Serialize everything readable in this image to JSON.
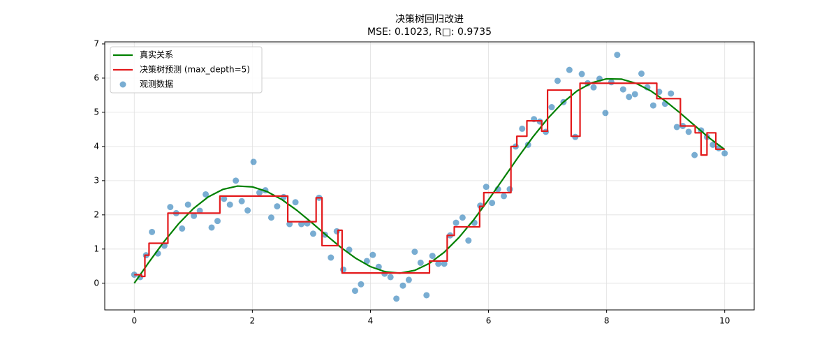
{
  "chart_data": {
    "type": "line",
    "title": "决策树回归改进",
    "subtitle": "MSE: 0.1023, R□: 0.9735",
    "xlim": [
      -0.5,
      10.5
    ],
    "ylim": [
      -0.78,
      7.06
    ],
    "xticks": [
      0,
      2,
      4,
      6,
      8,
      10
    ],
    "yticks": [
      0,
      1,
      2,
      3,
      4,
      5,
      6,
      7
    ],
    "grid": true,
    "legend": "upper left",
    "series": [
      {
        "name": "观测数据",
        "type": "scatter",
        "color": "#1f77b4",
        "x": [
          0,
          0.1,
          0.2,
          0.3,
          0.4,
          0.51,
          0.61,
          0.71,
          0.81,
          0.91,
          1.01,
          1.11,
          1.21,
          1.31,
          1.41,
          1.52,
          1.62,
          1.72,
          1.82,
          1.92,
          2.02,
          2.12,
          2.22,
          2.32,
          2.42,
          2.53,
          2.63,
          2.73,
          2.83,
          2.93,
          3.03,
          3.13,
          3.23,
          3.33,
          3.43,
          3.54,
          3.64,
          3.74,
          3.84,
          3.94,
          4.04,
          4.14,
          4.24,
          4.34,
          4.44,
          4.55,
          4.65,
          4.75,
          4.85,
          4.95,
          5.05,
          5.15,
          5.25,
          5.35,
          5.45,
          5.56,
          5.66,
          5.76,
          5.86,
          5.96,
          6.06,
          6.16,
          6.26,
          6.36,
          6.46,
          6.57,
          6.67,
          6.77,
          6.87,
          6.97,
          7.07,
          7.17,
          7.27,
          7.37,
          7.47,
          7.58,
          7.68,
          7.78,
          7.88,
          7.98,
          8.08,
          8.18,
          8.28,
          8.38,
          8.48,
          8.59,
          8.69,
          8.79,
          8.89,
          8.99,
          9.09,
          9.19,
          9.29,
          9.39,
          9.49,
          9.6,
          9.7,
          9.8,
          9.9,
          10
        ],
        "values": [
          0.25,
          0.18,
          0.82,
          1.5,
          0.87,
          1.1,
          2.23,
          2.05,
          1.6,
          2.3,
          1.97,
          2.12,
          2.6,
          1.63,
          1.82,
          2.47,
          2.3,
          3.0,
          2.4,
          2.13,
          3.55,
          2.65,
          2.72,
          1.92,
          2.25,
          2.52,
          1.73,
          2.37,
          1.73,
          1.75,
          1.45,
          2.5,
          1.42,
          0.75,
          1.52,
          0.4,
          0.98,
          -0.22,
          -0.03,
          0.65,
          0.83,
          0.48,
          0.28,
          0.18,
          -0.45,
          -0.07,
          0.1,
          0.92,
          0.6,
          -0.35,
          0.8,
          0.57,
          0.57,
          1.4,
          1.77,
          1.92,
          1.25,
          1.77,
          2.27,
          2.82,
          2.35,
          2.75,
          2.55,
          2.75,
          4.0,
          4.52,
          4.05,
          4.8,
          4.73,
          4.43,
          5.15,
          5.92,
          5.3,
          6.24,
          4.28,
          6.12,
          5.85,
          5.73,
          5.98,
          4.98,
          5.88,
          6.68,
          5.67,
          5.45,
          5.53,
          6.13,
          5.73,
          5.2,
          5.6,
          5.25,
          5.55,
          4.57,
          4.6,
          4.43,
          3.75,
          4.47,
          4.28,
          4.05,
          3.95,
          3.8
        ]
      },
      {
        "name": "真实关系",
        "type": "line",
        "color": "#008000",
        "x": [
          0,
          0.25,
          0.5,
          0.75,
          1,
          1.25,
          1.5,
          1.75,
          2,
          2.25,
          2.5,
          2.75,
          3,
          3.25,
          3.5,
          3.75,
          4,
          4.25,
          4.5,
          4.75,
          5,
          5.25,
          5.5,
          5.75,
          6,
          6.25,
          6.5,
          6.75,
          7,
          7.25,
          7.5,
          7.75,
          8,
          8.25,
          8.5,
          8.75,
          9,
          9.25,
          9.5,
          9.75,
          10
        ],
        "values": [
          0,
          0.62,
          1.209,
          1.738,
          2.183,
          2.523,
          2.745,
          2.843,
          2.819,
          2.681,
          2.447,
          2.138,
          1.782,
          1.409,
          1.048,
          0.732,
          0.486,
          0.335,
          0.295,
          0.376,
          0.582,
          0.907,
          1.339,
          1.858,
          2.441,
          3.059,
          3.68,
          4.275,
          4.814,
          5.271,
          5.626,
          5.864,
          5.979,
          5.971,
          5.847,
          5.624,
          5.324,
          4.974,
          4.6,
          4.236,
          3.912
        ]
      },
      {
        "name": "决策树预测 (max_depth=5)",
        "type": "line",
        "color": "#e31a1c",
        "x": [
          0,
          0.12,
          0.12,
          0.18,
          0.18,
          0.25,
          0.25,
          0.57,
          0.57,
          1.45,
          1.45,
          2.6,
          2.6,
          3.08,
          3.08,
          3.18,
          3.18,
          3.45,
          3.45,
          3.52,
          3.52,
          5.0,
          5.0,
          5.3,
          5.3,
          5.42,
          5.42,
          5.85,
          5.85,
          5.92,
          5.92,
          6.38,
          6.38,
          6.48,
          6.48,
          6.65,
          6.65,
          6.9,
          6.9,
          7.0,
          7.0,
          7.4,
          7.4,
          7.55,
          7.55,
          8.85,
          8.85,
          9.25,
          9.25,
          9.5,
          9.5,
          9.6,
          9.6,
          9.7,
          9.7,
          9.85,
          9.85,
          10
        ],
        "values": [
          0.25,
          0.25,
          0.2,
          0.2,
          0.82,
          0.82,
          1.17,
          1.17,
          2.05,
          2.05,
          2.55,
          2.55,
          1.8,
          1.8,
          2.5,
          2.5,
          1.1,
          1.1,
          1.55,
          1.55,
          0.3,
          0.3,
          0.65,
          0.65,
          1.4,
          1.4,
          1.65,
          1.65,
          2.25,
          2.25,
          2.65,
          2.65,
          4.0,
          4.0,
          4.3,
          4.3,
          4.75,
          4.75,
          4.45,
          4.45,
          5.65,
          5.65,
          4.3,
          4.3,
          5.85,
          5.85,
          5.4,
          5.4,
          4.6,
          4.6,
          4.4,
          4.4,
          3.75,
          3.75,
          4.4,
          4.4,
          3.92,
          3.92
        ]
      }
    ]
  }
}
